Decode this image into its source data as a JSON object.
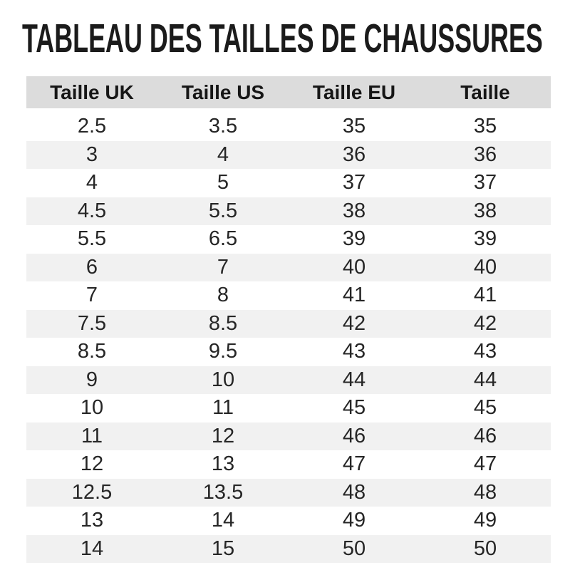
{
  "title": "TABLEAU DES TAILLES DE CHAUSSURES",
  "table": {
    "headers": [
      "Taille UK",
      "Taille US",
      "Taille EU",
      "Taille"
    ],
    "rows": [
      [
        "2.5",
        "3.5",
        "35",
        "35"
      ],
      [
        "3",
        "4",
        "36",
        "36"
      ],
      [
        "4",
        "5",
        "37",
        "37"
      ],
      [
        "4.5",
        "5.5",
        "38",
        "38"
      ],
      [
        "5.5",
        "6.5",
        "39",
        "39"
      ],
      [
        "6",
        "7",
        "40",
        "40"
      ],
      [
        "7",
        "8",
        "41",
        "41"
      ],
      [
        "7.5",
        "8.5",
        "42",
        "42"
      ],
      [
        "8.5",
        "9.5",
        "43",
        "43"
      ],
      [
        "9",
        "10",
        "44",
        "44"
      ],
      [
        "10",
        "11",
        "45",
        "45"
      ],
      [
        "11",
        "12",
        "46",
        "46"
      ],
      [
        "12",
        "13",
        "47",
        "47"
      ],
      [
        "12.5",
        "13.5",
        "48",
        "48"
      ],
      [
        "13",
        "14",
        "49",
        "49"
      ],
      [
        "14",
        "15",
        "50",
        "50"
      ]
    ]
  },
  "colors": {
    "header_bg": "#dcdcdc",
    "stripe_bg": "#f1f1f1",
    "title_text": "#1b1b1b",
    "cell_text": "#262626",
    "background": "#ffffff"
  },
  "chart_data": {
    "type": "table",
    "title": "TABLEAU DES TAILLES DE CHAUSSURES",
    "columns": [
      "Taille UK",
      "Taille US",
      "Taille EU",
      "Taille"
    ],
    "series": [
      {
        "name": "Taille UK",
        "values": [
          2.5,
          3,
          4,
          4.5,
          5.5,
          6,
          7,
          7.5,
          8.5,
          9,
          10,
          11,
          12,
          12.5,
          13,
          14
        ]
      },
      {
        "name": "Taille US",
        "values": [
          3.5,
          4,
          5,
          5.5,
          6.5,
          7,
          8,
          8.5,
          9.5,
          10,
          11,
          12,
          13,
          13.5,
          14,
          15
        ]
      },
      {
        "name": "Taille EU",
        "values": [
          35,
          36,
          37,
          38,
          39,
          40,
          41,
          42,
          43,
          44,
          45,
          46,
          47,
          48,
          49,
          50
        ]
      },
      {
        "name": "Taille",
        "values": [
          35,
          36,
          37,
          38,
          39,
          40,
          41,
          42,
          43,
          44,
          45,
          46,
          47,
          48,
          49,
          50
        ]
      }
    ],
    "layout": {
      "row_striping": true,
      "header_background": "#dcdcdc",
      "stripe_background": "#f1f1f1"
    }
  }
}
